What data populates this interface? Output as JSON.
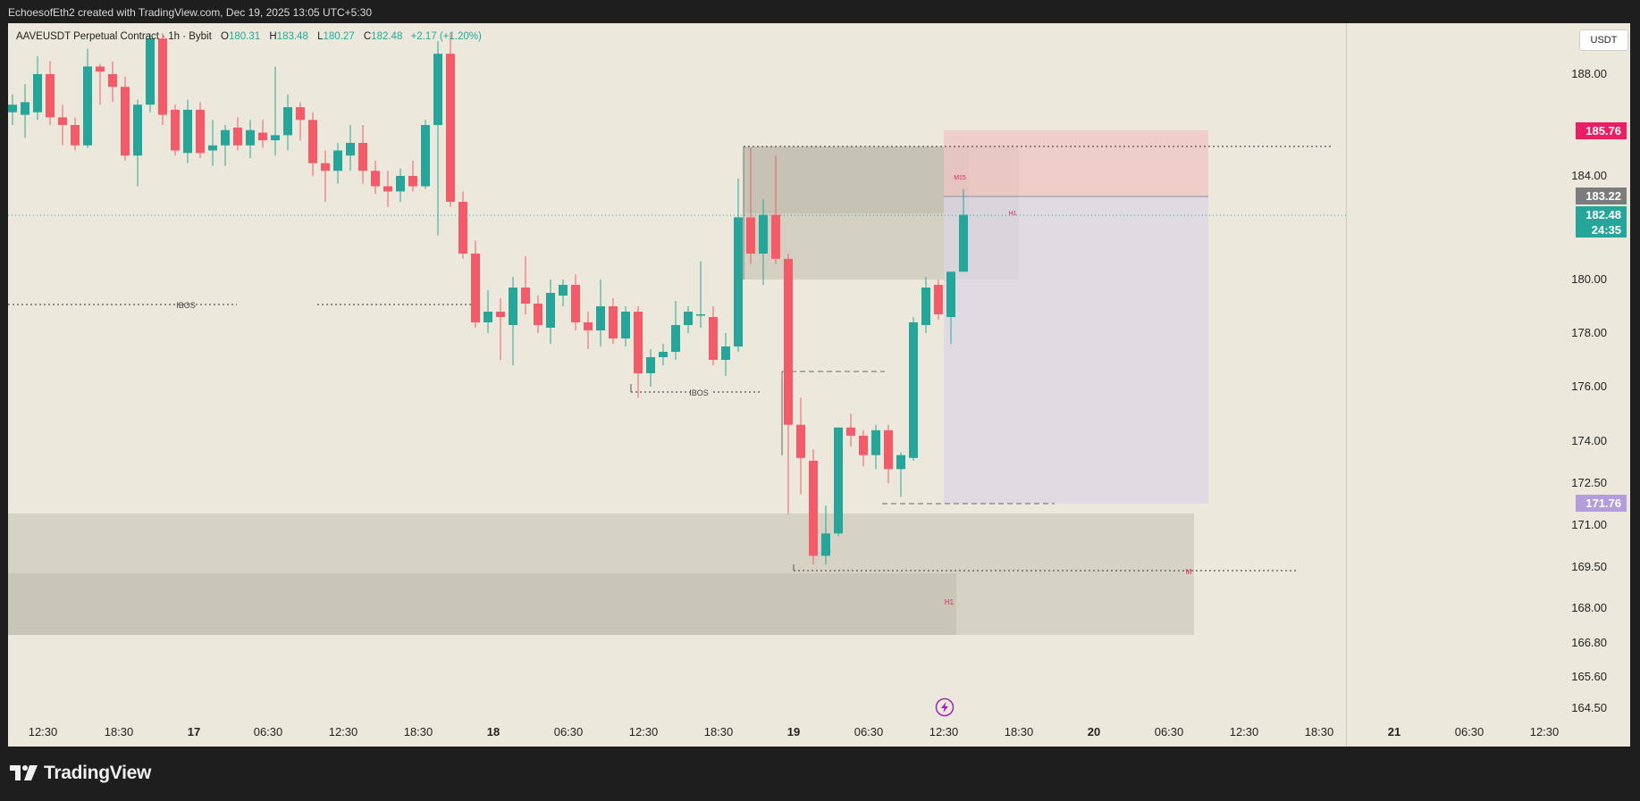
{
  "header": {
    "attribution": "EchoesofEth2 created with TradingView.com, Dec 19, 2025 13:05 UTC+5:30"
  },
  "legend": {
    "symbol": "AAVEUSDT Perpetual Contract · 1h · Bybit",
    "o_label": "O",
    "o": "180.31",
    "h_label": "H",
    "h": "183.48",
    "l_label": "L",
    "l": "180.27",
    "c_label": "C",
    "c": "182.48",
    "change": "+2.17 (+1.20%)"
  },
  "currency_button": "USDT",
  "footer": {
    "brand": "TradingView"
  },
  "chart_data": {
    "type": "candlestick",
    "timeframe": "1h",
    "ylim": [
      164.0,
      189.5
    ],
    "y_ticks": [
      "188.00",
      "184.00",
      "180.00",
      "178.00",
      "176.00",
      "174.00",
      "172.50",
      "171.00",
      "169.50",
      "168.00",
      "166.80",
      "165.60",
      "164.50"
    ],
    "x_ticks": [
      "12:30",
      "18:30",
      "17",
      "06:30",
      "12:30",
      "18:30",
      "18",
      "06:30",
      "12:30",
      "18:30",
      "19",
      "06:30",
      "12:30",
      "18:30",
      "20",
      "06:30",
      "12:30",
      "18:30",
      "21",
      "06:30",
      "12:30"
    ],
    "price_labels": [
      {
        "value": "185.76",
        "color": "#e91e63"
      },
      {
        "value": "183.22",
        "color": "#7c7c7c"
      },
      {
        "value": "182.48",
        "color": "#26a69a"
      },
      {
        "value": "24:35",
        "color": "#26a69a"
      },
      {
        "value": "171.76",
        "color": "#b39ddb"
      }
    ],
    "annotations": [
      "IBOS",
      "IBOS",
      "M15",
      "H1",
      "M",
      "H1"
    ],
    "colors": {
      "up": "#26a69a",
      "down": "#f45b69",
      "background": "#ece9dc"
    },
    "candles": [
      {
        "o": 186.5,
        "h": 187.2,
        "l": 186.0,
        "c": 186.8
      },
      {
        "o": 186.4,
        "h": 187.6,
        "l": 185.5,
        "c": 186.9
      },
      {
        "o": 186.5,
        "h": 188.7,
        "l": 186.2,
        "c": 188.0
      },
      {
        "o": 188.0,
        "h": 188.5,
        "l": 186.0,
        "c": 186.3
      },
      {
        "o": 186.3,
        "h": 186.8,
        "l": 185.2,
        "c": 186.0
      },
      {
        "o": 186.0,
        "h": 186.3,
        "l": 185.0,
        "c": 185.2
      },
      {
        "o": 185.2,
        "h": 189.0,
        "l": 185.1,
        "c": 188.3
      },
      {
        "o": 188.3,
        "h": 188.4,
        "l": 186.8,
        "c": 188.1
      },
      {
        "o": 188.0,
        "h": 188.5,
        "l": 186.9,
        "c": 187.5
      },
      {
        "o": 187.5,
        "h": 187.9,
        "l": 184.6,
        "c": 184.8
      },
      {
        "o": 184.8,
        "h": 187.0,
        "l": 183.6,
        "c": 186.8
      },
      {
        "o": 186.8,
        "h": 189.6,
        "l": 186.5,
        "c": 189.4
      },
      {
        "o": 189.4,
        "h": 189.6,
        "l": 186.0,
        "c": 186.4
      },
      {
        "o": 186.6,
        "h": 186.8,
        "l": 184.8,
        "c": 185.0
      },
      {
        "o": 184.9,
        "h": 187.0,
        "l": 184.5,
        "c": 186.6
      },
      {
        "o": 186.6,
        "h": 186.9,
        "l": 184.7,
        "c": 184.9
      },
      {
        "o": 185.0,
        "h": 186.2,
        "l": 184.4,
        "c": 185.2
      },
      {
        "o": 185.2,
        "h": 186.0,
        "l": 184.4,
        "c": 185.8
      },
      {
        "o": 185.9,
        "h": 186.3,
        "l": 185.0,
        "c": 185.2
      },
      {
        "o": 185.2,
        "h": 186.2,
        "l": 184.7,
        "c": 185.8
      },
      {
        "o": 185.7,
        "h": 186.2,
        "l": 185.1,
        "c": 185.4
      },
      {
        "o": 185.4,
        "h": 188.3,
        "l": 184.8,
        "c": 185.6
      },
      {
        "o": 185.6,
        "h": 187.2,
        "l": 185.0,
        "c": 186.7
      },
      {
        "o": 186.7,
        "h": 186.9,
        "l": 185.4,
        "c": 186.2
      },
      {
        "o": 186.2,
        "h": 186.5,
        "l": 184.0,
        "c": 184.5
      },
      {
        "o": 184.5,
        "h": 185.0,
        "l": 183.0,
        "c": 184.2
      },
      {
        "o": 184.2,
        "h": 185.3,
        "l": 183.7,
        "c": 185.0
      },
      {
        "o": 184.8,
        "h": 186.0,
        "l": 184.2,
        "c": 185.3
      },
      {
        "o": 185.3,
        "h": 186.0,
        "l": 183.7,
        "c": 184.2
      },
      {
        "o": 184.2,
        "h": 184.6,
        "l": 183.3,
        "c": 183.6
      },
      {
        "o": 183.6,
        "h": 184.2,
        "l": 182.8,
        "c": 183.4
      },
      {
        "o": 183.4,
        "h": 184.3,
        "l": 183.0,
        "c": 184.0
      },
      {
        "o": 184.0,
        "h": 184.6,
        "l": 183.4,
        "c": 183.6
      },
      {
        "o": 183.6,
        "h": 186.2,
        "l": 183.5,
        "c": 186.0
      },
      {
        "o": 186.0,
        "h": 189.3,
        "l": 181.7,
        "c": 188.8
      },
      {
        "o": 188.8,
        "h": 189.6,
        "l": 182.8,
        "c": 183.0
      },
      {
        "o": 183.0,
        "h": 183.4,
        "l": 180.8,
        "c": 181.0
      },
      {
        "o": 181.0,
        "h": 181.5,
        "l": 178.2,
        "c": 178.4
      },
      {
        "o": 178.4,
        "h": 179.6,
        "l": 178.0,
        "c": 178.8
      },
      {
        "o": 178.8,
        "h": 179.3,
        "l": 177.0,
        "c": 178.6
      },
      {
        "o": 178.3,
        "h": 180.1,
        "l": 176.8,
        "c": 179.7
      },
      {
        "o": 179.7,
        "h": 180.9,
        "l": 178.7,
        "c": 179.1
      },
      {
        "o": 179.1,
        "h": 179.4,
        "l": 178.0,
        "c": 178.3
      },
      {
        "o": 178.2,
        "h": 180.0,
        "l": 177.6,
        "c": 179.5
      },
      {
        "o": 179.4,
        "h": 180.0,
        "l": 179.0,
        "c": 179.8
      },
      {
        "o": 179.8,
        "h": 180.2,
        "l": 178.1,
        "c": 178.4
      },
      {
        "o": 178.4,
        "h": 178.8,
        "l": 177.4,
        "c": 178.1
      },
      {
        "o": 178.1,
        "h": 180.0,
        "l": 177.5,
        "c": 179.0
      },
      {
        "o": 179.0,
        "h": 179.3,
        "l": 177.6,
        "c": 177.8
      },
      {
        "o": 177.8,
        "h": 179.0,
        "l": 177.5,
        "c": 178.8
      },
      {
        "o": 178.8,
        "h": 179.0,
        "l": 175.6,
        "c": 176.5
      },
      {
        "o": 176.5,
        "h": 177.4,
        "l": 176.0,
        "c": 177.1
      },
      {
        "o": 177.1,
        "h": 177.6,
        "l": 176.8,
        "c": 177.3
      },
      {
        "o": 177.3,
        "h": 179.2,
        "l": 177.0,
        "c": 178.3
      },
      {
        "o": 178.3,
        "h": 179.0,
        "l": 178.0,
        "c": 178.8
      },
      {
        "o": 178.7,
        "h": 180.7,
        "l": 178.2,
        "c": 178.7
      },
      {
        "o": 178.6,
        "h": 179.0,
        "l": 176.8,
        "c": 177.0
      },
      {
        "o": 177.0,
        "h": 178.0,
        "l": 176.4,
        "c": 177.5
      },
      {
        "o": 177.5,
        "h": 183.9,
        "l": 177.3,
        "c": 182.4
      },
      {
        "o": 182.4,
        "h": 185.1,
        "l": 180.6,
        "c": 181.0
      },
      {
        "o": 181.0,
        "h": 183.1,
        "l": 179.8,
        "c": 182.5
      },
      {
        "o": 182.5,
        "h": 184.8,
        "l": 180.6,
        "c": 180.8
      },
      {
        "o": 180.8,
        "h": 181.0,
        "l": 171.4,
        "c": 174.6
      },
      {
        "o": 174.6,
        "h": 175.6,
        "l": 172.1,
        "c": 173.4
      },
      {
        "o": 173.3,
        "h": 173.7,
        "l": 169.6,
        "c": 169.9
      },
      {
        "o": 169.9,
        "h": 171.7,
        "l": 169.6,
        "c": 170.7
      },
      {
        "o": 170.7,
        "h": 174.5,
        "l": 170.6,
        "c": 174.5
      },
      {
        "o": 174.5,
        "h": 175.0,
        "l": 173.8,
        "c": 174.2
      },
      {
        "o": 174.2,
        "h": 174.4,
        "l": 173.1,
        "c": 173.5
      },
      {
        "o": 173.5,
        "h": 174.6,
        "l": 173.0,
        "c": 174.4
      },
      {
        "o": 174.4,
        "h": 174.6,
        "l": 172.5,
        "c": 173.0
      },
      {
        "o": 173.0,
        "h": 173.6,
        "l": 172.0,
        "c": 173.5
      },
      {
        "o": 173.4,
        "h": 178.6,
        "l": 173.3,
        "c": 178.4
      },
      {
        "o": 178.3,
        "h": 180.1,
        "l": 178.0,
        "c": 179.7
      },
      {
        "o": 179.8,
        "h": 180.0,
        "l": 178.5,
        "c": 178.7
      },
      {
        "o": 178.6,
        "h": 180.3,
        "l": 177.6,
        "c": 180.3
      },
      {
        "o": 180.3,
        "h": 183.5,
        "l": 180.3,
        "c": 182.5
      }
    ]
  }
}
